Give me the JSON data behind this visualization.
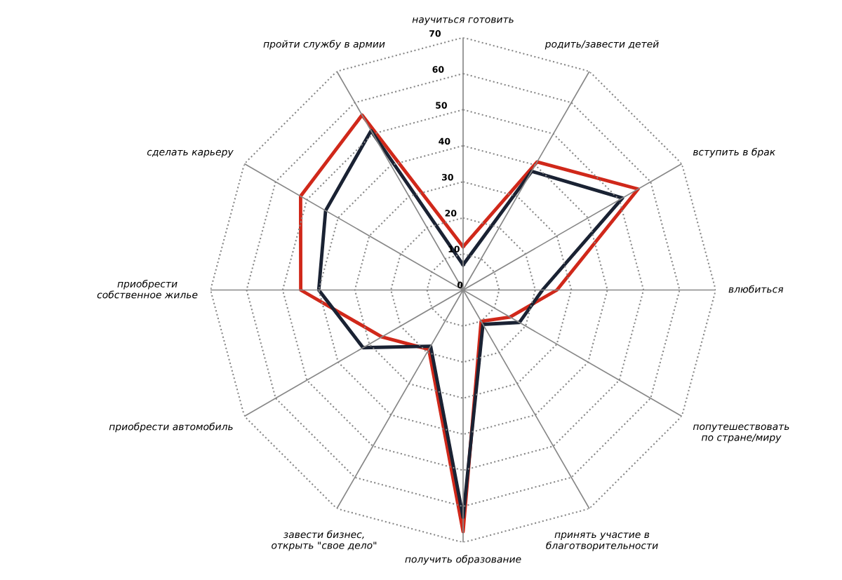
{
  "chart_data": {
    "type": "radar",
    "categories": [
      "научиться готовить",
      "родить/завести детей",
      "вступить в брак",
      "влюбиться",
      "попутешествовать по стране/миру",
      "принять участие в благотворительности",
      "получить образование",
      "завести бизнес, открыть \"свое дело\"",
      "приобрести автомобиль",
      "приобрести собственное жилье",
      "сделать карьеру",
      "пройти службу в армии"
    ],
    "series": [
      {
        "color": "#d0281a",
        "values": [
          12,
          41,
          56,
          26,
          15,
          10,
          67,
          19,
          26,
          45,
          52,
          56
        ]
      },
      {
        "color": "#1a2233",
        "values": [
          7,
          38,
          51,
          22,
          18,
          11,
          63,
          18,
          32,
          40,
          44,
          51
        ]
      }
    ],
    "ylim": [
      0,
      70
    ],
    "yticks": [
      0,
      10,
      20,
      30,
      40,
      50,
      60,
      70
    ],
    "grid": true
  }
}
